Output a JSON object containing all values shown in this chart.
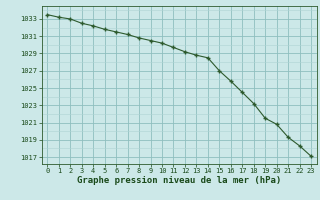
{
  "x": [
    0,
    1,
    2,
    3,
    4,
    5,
    6,
    7,
    8,
    9,
    10,
    11,
    12,
    13,
    14,
    15,
    16,
    17,
    18,
    19,
    20,
    21,
    22,
    23
  ],
  "y": [
    1033.5,
    1033.2,
    1033.0,
    1032.5,
    1032.2,
    1031.8,
    1031.5,
    1031.2,
    1030.8,
    1030.5,
    1030.2,
    1029.7,
    1029.2,
    1028.8,
    1028.5,
    1027.0,
    1025.8,
    1024.5,
    1023.2,
    1021.5,
    1020.8,
    1019.3,
    1018.3,
    1017.1
  ],
  "line_color": "#2d5a2d",
  "marker": "P",
  "markersize": 3.5,
  "linewidth": 0.8,
  "bg_color": "#cce8e8",
  "grid_minor_color": "#aed4d4",
  "grid_major_color": "#8fbfbf",
  "xlabel": "Graphe pression niveau de la mer (hPa)",
  "xlabel_color": "#1a4a1a",
  "xlabel_fontsize": 6.5,
  "ylabel_ticks": [
    1017,
    1019,
    1021,
    1023,
    1025,
    1027,
    1029,
    1031,
    1033
  ],
  "xlim": [
    -0.5,
    23.5
  ],
  "ylim": [
    1016.2,
    1034.5
  ],
  "xticks": [
    0,
    1,
    2,
    3,
    4,
    5,
    6,
    7,
    8,
    9,
    10,
    11,
    12,
    13,
    14,
    15,
    16,
    17,
    18,
    19,
    20,
    21,
    22,
    23
  ],
  "tick_fontsize": 5.0,
  "tick_color": "#1a4a1a",
  "spine_color": "#2d5a2d"
}
